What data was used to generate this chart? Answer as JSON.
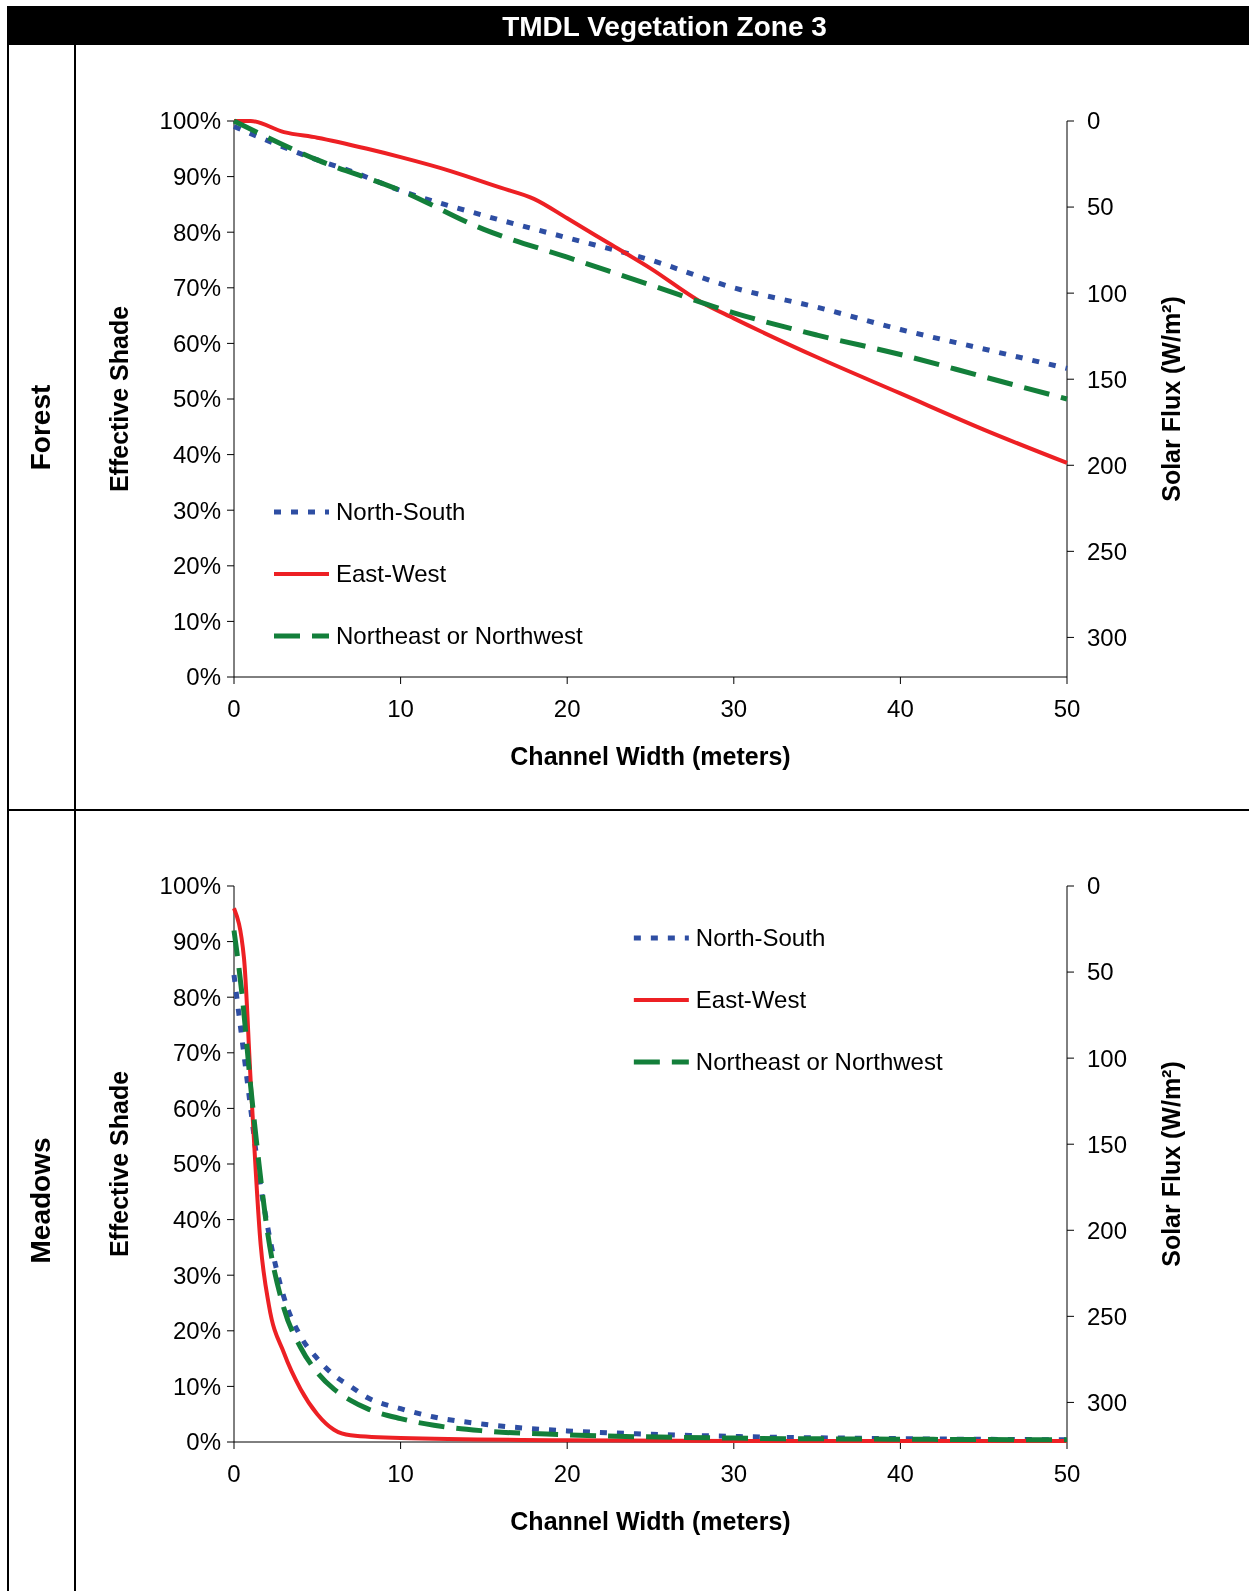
{
  "chart_data": [
    {
      "type": "line",
      "title": "TMDL Vegetation Zone 3",
      "subtitle": "Forest",
      "xlabel": "Channel Width (meters)",
      "ylabel": "Effective Shade",
      "y2label": "Solar Flux (W/m²)",
      "xlim": [
        0,
        50
      ],
      "xticks": [
        0,
        10,
        20,
        30,
        40,
        50
      ],
      "ylim": [
        0,
        100
      ],
      "yticks": [
        {
          "value": 0,
          "label": "0%"
        },
        {
          "value": 10,
          "label": "10%"
        },
        {
          "value": 20,
          "label": "20%"
        },
        {
          "value": 30,
          "label": "30%"
        },
        {
          "value": 40,
          "label": "40%"
        },
        {
          "value": 50,
          "label": "50%"
        },
        {
          "value": 60,
          "label": "60%"
        },
        {
          "value": 70,
          "label": "70%"
        },
        {
          "value": 80,
          "label": "80%"
        },
        {
          "value": 90,
          "label": "90%"
        },
        {
          "value": 100,
          "label": "100%"
        }
      ],
      "y2lim": [
        323,
        0
      ],
      "y2ticks": [
        0,
        50,
        100,
        150,
        200,
        250,
        300
      ],
      "legend": "bottom left",
      "grid": false,
      "series": [
        {
          "name": "North-South",
          "color": "#2e4ea3",
          "line_style": "dotted",
          "x": [
            0,
            5,
            7,
            10,
            15,
            20,
            25,
            30,
            35,
            40,
            45,
            50
          ],
          "values": [
            99,
            93,
            91,
            87.5,
            83,
            79,
            75,
            70,
            66.5,
            62.5,
            59,
            55.5
          ]
        },
        {
          "name": "East-West",
          "color": "#ed2024",
          "line_style": "solid",
          "x": [
            0,
            1,
            3,
            5,
            8,
            10,
            13,
            16,
            18,
            20,
            22.5,
            25,
            28,
            30,
            35,
            40,
            45,
            50
          ],
          "values": [
            100,
            100,
            98,
            97,
            95,
            93.5,
            91,
            88,
            86,
            82.5,
            78,
            73.5,
            67.5,
            64.5,
            57.5,
            51,
            44.5,
            38.5
          ]
        },
        {
          "name": "Northeast or Northwest",
          "color": "#137f3a",
          "line_style": "dashed",
          "x": [
            0,
            5,
            10,
            15,
            20,
            25,
            30,
            35,
            40,
            45,
            50
          ],
          "values": [
            100,
            93,
            87.5,
            80.5,
            75.5,
            70.5,
            65.5,
            61.5,
            58,
            54,
            50
          ]
        }
      ]
    },
    {
      "type": "line",
      "subtitle": "Meadows",
      "xlabel": "Channel Width (meters)",
      "ylabel": "Effective Shade",
      "y2label": "Solar Flux (W/m²)",
      "xlim": [
        0,
        50
      ],
      "xticks": [
        0,
        10,
        20,
        30,
        40,
        50
      ],
      "ylim": [
        0,
        100
      ],
      "yticks": [
        {
          "value": 0,
          "label": "0%"
        },
        {
          "value": 10,
          "label": "10%"
        },
        {
          "value": 20,
          "label": "20%"
        },
        {
          "value": 30,
          "label": "30%"
        },
        {
          "value": 40,
          "label": "40%"
        },
        {
          "value": 50,
          "label": "50%"
        },
        {
          "value": 60,
          "label": "60%"
        },
        {
          "value": 70,
          "label": "70%"
        },
        {
          "value": 80,
          "label": "80%"
        },
        {
          "value": 90,
          "label": "90%"
        },
        {
          "value": 100,
          "label": "100%"
        }
      ],
      "y2lim": [
        323,
        0
      ],
      "y2ticks": [
        0,
        50,
        100,
        150,
        200,
        250,
        300
      ],
      "legend": "top right",
      "grid": false,
      "series": [
        {
          "name": "North-South",
          "color": "#2e4ea3",
          "line_style": "dotted",
          "x": [
            0,
            0.5,
            1,
            1.5,
            2,
            3,
            4,
            5,
            6,
            7,
            8,
            10,
            12,
            15,
            20,
            25,
            30,
            40,
            50
          ],
          "values": [
            84,
            72,
            60,
            48,
            39,
            26,
            19,
            15,
            12,
            10,
            8,
            6,
            4.5,
            3.2,
            2,
            1.4,
            1,
            0.6,
            0.4
          ]
        },
        {
          "name": "East-West",
          "color": "#ed2024",
          "line_style": "solid",
          "x": [
            0,
            0.6,
            1,
            1.6,
            2.1,
            3,
            4,
            5,
            6,
            7,
            10,
            20,
            30,
            50
          ],
          "values": [
            96,
            87,
            65,
            35.5,
            24.5,
            16,
            9.5,
            5,
            2.2,
            1.2,
            0.7,
            0.3,
            0.2,
            0.2
          ]
        },
        {
          "name": "Northeast or Northwest",
          "color": "#137f3a",
          "line_style": "dashed",
          "x": [
            0,
            0.5,
            1,
            1.5,
            2,
            3,
            4,
            5,
            6,
            7,
            8,
            10,
            12,
            15,
            20,
            30,
            40,
            50
          ],
          "values": [
            92,
            80,
            64,
            50,
            38,
            24,
            17,
            12.5,
            9.5,
            7.5,
            6,
            4.2,
            3,
            2,
            1.3,
            0.7,
            0.5,
            0.4
          ]
        }
      ]
    }
  ]
}
